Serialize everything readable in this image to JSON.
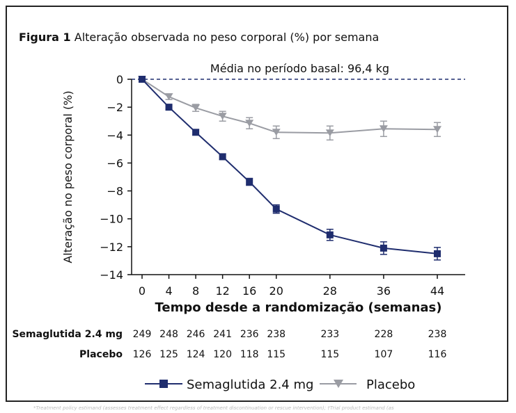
{
  "figure": {
    "label": "Figura 1",
    "caption": "Alteração observada no peso corporal (%) por semana"
  },
  "chart_data": {
    "type": "line",
    "baseline_annotation": "Média no período basal: 96,4 kg",
    "xlabel": "Tempo desde a randomização (semanas)",
    "ylabel": "Alteração no peso corporal (%)",
    "x": [
      0,
      4,
      8,
      12,
      16,
      20,
      28,
      36,
      44
    ],
    "xlim": [
      -2,
      46
    ],
    "ylim": [
      -14,
      0
    ],
    "yticks": [
      0,
      -2,
      -4,
      -6,
      -8,
      -10,
      -12,
      -14
    ],
    "ytick_labels": [
      "0",
      "−2",
      "−4",
      "−6",
      "−8",
      "−10",
      "−12",
      "−14"
    ],
    "xtick_labels": [
      "0",
      "4",
      "8",
      "12",
      "16",
      "20",
      "28",
      "36",
      "44"
    ],
    "series": [
      {
        "name": "Semaglutida 2.4 mg",
        "color": "#1f2d6e",
        "marker": "square",
        "values": [
          0,
          -2.0,
          -3.8,
          -5.55,
          -7.35,
          -9.3,
          -11.15,
          -12.1,
          -12.5
        ],
        "err": [
          0,
          0.15,
          0.2,
          0.2,
          0.25,
          0.3,
          0.4,
          0.45,
          0.45
        ]
      },
      {
        "name": "Placebo",
        "color": "#9a9ca3",
        "marker": "triangle-down",
        "values": [
          0,
          -1.25,
          -2.05,
          -2.65,
          -3.15,
          -3.8,
          -3.85,
          -3.55,
          -3.6
        ],
        "err": [
          0,
          0.2,
          0.25,
          0.35,
          0.4,
          0.45,
          0.5,
          0.55,
          0.5
        ]
      }
    ],
    "grid": false,
    "legend_position": "bottom"
  },
  "at_risk": {
    "rows": [
      {
        "label": "Semaglutida 2.4 mg",
        "values": [
          "249",
          "248",
          "246",
          "241",
          "236",
          "238",
          "233",
          "228",
          "238"
        ]
      },
      {
        "label": "Placebo",
        "values": [
          "126",
          "125",
          "124",
          "120",
          "118",
          "115",
          "115",
          "107",
          "116"
        ]
      }
    ]
  },
  "footnote": "*Treatment policy estimand (assesses treatment effect regardless of treatment discontinuation or rescue intervention); †Trial product estimand (as"
}
